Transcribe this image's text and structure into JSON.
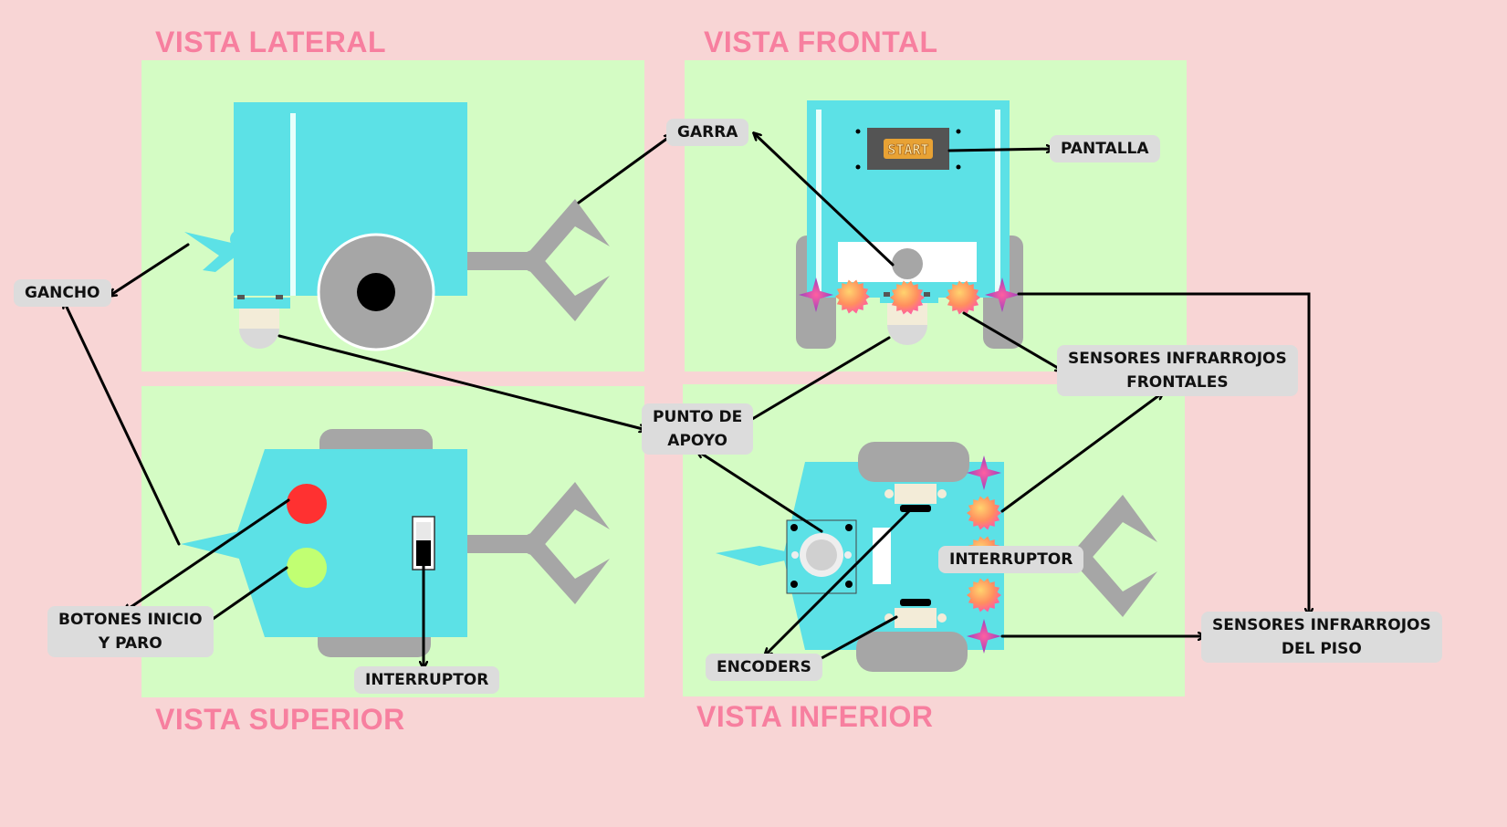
{
  "colors": {
    "background": "#f8d5d5",
    "panel": "#d4fcc4",
    "robot_body": "#5ce1e6",
    "grey": "#a6a6a6",
    "title": "#f77f9f",
    "tag_bg": "#dcdcdc",
    "button_red": "#ff3131",
    "button_green": "#c1ff72",
    "ir_sensor": "#ff8f5e",
    "star_sensor": "#b3389e",
    "screen": "#545454",
    "screen_text": "#f4a62a"
  },
  "views": {
    "lateral": "VISTA LATERAL",
    "frontal": "VISTA FRONTAL",
    "superior": "VISTA SUPERIOR",
    "inferior": "VISTA INFERIOR"
  },
  "screen_text": "START",
  "labels": {
    "garra": "GARRA",
    "pantalla": "PANTALLA",
    "gancho": "GANCHO",
    "sensores_frontales": [
      "SENSORES INFRARROJOS",
      "FRONTALES"
    ],
    "punto_apoyo": [
      "PUNTO DE",
      "APOYO"
    ],
    "botones": [
      "BOTONES INICIO",
      "Y PARO"
    ],
    "interruptor_superior": "INTERRUPTOR",
    "interruptor_inferior": "INTERRUPTOR",
    "encoders": "ENCODERS",
    "sensores_piso": [
      "SENSORES INFRARROJOS",
      "DEL PISO"
    ]
  },
  "icons": [
    "robot-side-view",
    "robot-front-view",
    "robot-top-view",
    "robot-bottom-view",
    "claw-icon",
    "wheel-icon",
    "start-screen-icon",
    "ir-sensor-icon",
    "star-sensor-icon",
    "switch-icon",
    "arrow-icon"
  ]
}
